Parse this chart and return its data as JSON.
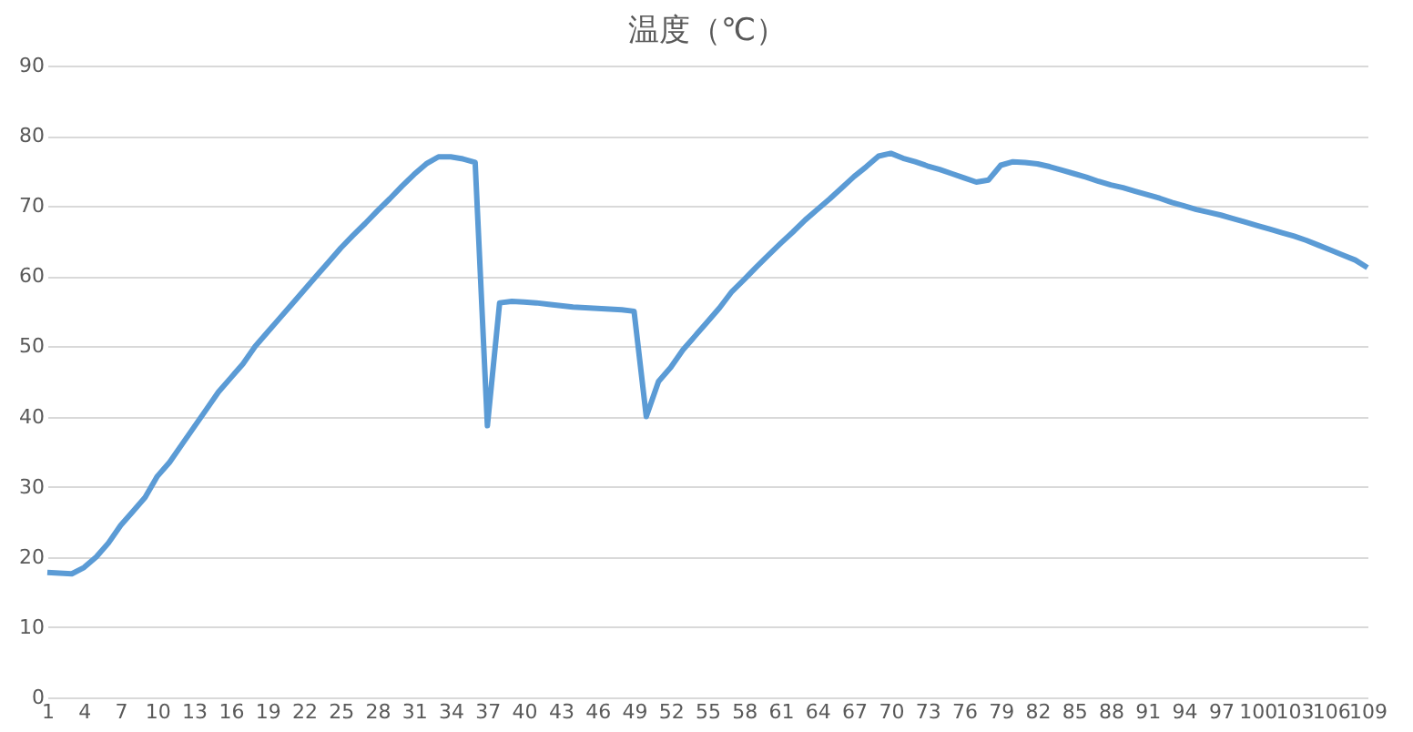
{
  "chart_data": {
    "type": "line",
    "title": "温度（℃）",
    "categories": [
      "1",
      null,
      null,
      "4",
      null,
      null,
      "7",
      null,
      null,
      "10",
      null,
      null,
      "13",
      null,
      null,
      "16",
      null,
      null,
      "19",
      null,
      null,
      "22",
      null,
      null,
      "25",
      null,
      null,
      "28",
      null,
      null,
      "31",
      null,
      null,
      "34",
      null,
      null,
      "37",
      null,
      null,
      "40",
      null,
      null,
      "43",
      null,
      null,
      "46",
      null,
      null,
      "49",
      null,
      null,
      "52",
      null,
      null,
      "55",
      null,
      null,
      "58",
      null,
      null,
      "61",
      null,
      null,
      "64",
      null,
      null,
      "67",
      null,
      null,
      "70",
      null,
      null,
      "73",
      null,
      null,
      "76",
      null,
      null,
      "79",
      null,
      null,
      "82",
      null,
      null,
      "85",
      null,
      null,
      "88",
      null,
      null,
      "91",
      null,
      null,
      "94",
      null,
      null,
      "97",
      null,
      null,
      "100",
      null,
      null,
      "103",
      null,
      null,
      "106",
      null,
      null,
      "109"
    ],
    "series": [
      {
        "color": "#5b9bd5",
        "values": [
          17.8,
          17.7,
          17.6,
          18.5,
          20,
          22,
          24.5,
          26.5,
          28.5,
          31.5,
          33.5,
          36,
          38.5,
          41,
          43.5,
          45.5,
          47.5,
          50,
          52,
          54,
          56,
          58,
          60,
          62,
          64,
          65.8,
          67.5,
          69.3,
          71,
          72.8,
          74.5,
          76,
          77,
          77,
          76.7,
          76.2,
          38.7,
          56.2,
          56.4,
          56.3,
          56.2,
          56,
          55.8,
          55.6,
          55.5,
          55.4,
          55.3,
          55.2,
          55,
          40,
          45,
          47,
          49.5,
          51.5,
          53.5,
          55.5,
          57.8,
          59.5,
          61.3,
          63,
          64.7,
          66.3,
          68,
          69.5,
          71,
          72.6,
          74.2,
          75.6,
          77.1,
          77.5,
          76.8,
          76.3,
          75.7,
          75.2,
          74.6,
          74,
          73.4,
          73.7,
          75.8,
          76.3,
          76.2,
          76,
          75.6,
          75.1,
          74.6,
          74.1,
          73.5,
          73,
          72.6,
          72.1,
          71.6,
          71.1,
          70.5,
          70,
          69.5,
          69.1,
          68.7,
          68.2,
          67.7,
          67.2,
          66.7,
          66.2,
          65.7,
          65.1,
          64.4,
          63.7,
          63,
          62.3,
          61.2
        ]
      }
    ],
    "ylim": [
      0,
      90
    ],
    "yticks": [
      0,
      10,
      20,
      30,
      40,
      50,
      60,
      70,
      80,
      90
    ],
    "grid": "y",
    "marker": "none",
    "line_style": "solid"
  }
}
